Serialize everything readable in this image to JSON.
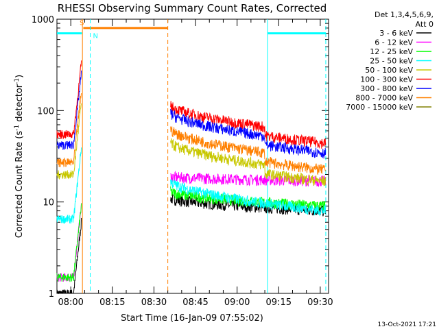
{
  "chart_data": {
    "type": "line",
    "title": "RHESSI Observing Summary Count Rates, Corrected",
    "xlabel": "Start Time (16-Jan-09 07:55:02)",
    "ylabel_parts": [
      "Corrected Count Rate (s",
      "-1",
      " detector",
      "-1",
      ")"
    ],
    "y_scale": "log",
    "ylim": [
      1,
      1000
    ],
    "xlim_minutes_after_0755": [
      0,
      98
    ],
    "x_tick_labels": [
      "08:00",
      "08:15",
      "08:30",
      "08:45",
      "09:00",
      "09:15",
      "09:30"
    ],
    "y_tick_labels": [
      "1",
      "10",
      "100",
      "1000"
    ],
    "legend_header": [
      "Det 1,3,4,5,6,9,",
      "Att 0"
    ],
    "legend_position": "right",
    "timestamp": "13-Oct-2021 17:21",
    "flags": [
      {
        "label": "S",
        "color": "#ff8000"
      },
      {
        "label": "N",
        "color": "#00ffff"
      }
    ],
    "series": [
      {
        "name": "3 - 6 keV",
        "color": "#000000",
        "level_pre": 1,
        "level_post_start": 11,
        "level_post_end": 8
      },
      {
        "name": "6 - 12 keV",
        "color": "#ff00ff",
        "level_pre": 1.5,
        "level_post_start": 19,
        "level_post_end": 17
      },
      {
        "name": "12 - 25 keV",
        "color": "#00ff00",
        "level_pre": 1.5,
        "level_post_start": 13,
        "level_post_end": 9
      },
      {
        "name": "25 - 50 keV",
        "color": "#00ffff",
        "level_pre": 6.5,
        "level_post_start": 17,
        "level_post_end": 8
      },
      {
        "name": "50 - 100 keV",
        "color": "#c8c800",
        "level_pre": 20,
        "level_post_start": 45,
        "level_post_end": 21
      },
      {
        "name": "100 - 300 keV",
        "color": "#ff0000",
        "level_pre": 55,
        "level_post_start": 115,
        "level_post_end": 55
      },
      {
        "name": "300 - 800 keV",
        "color": "#0000ff",
        "level_pre": 42,
        "level_post_start": 95,
        "level_post_end": 43
      },
      {
        "name": "800 - 7000 keV",
        "color": "#ff8000",
        "level_pre": 27,
        "level_post_start": 63,
        "level_post_end": 28
      },
      {
        "name": "7000 - 15000 keV",
        "color": "#808000",
        "level_pre": null,
        "level_post_start": null,
        "level_post_end": null
      }
    ]
  }
}
